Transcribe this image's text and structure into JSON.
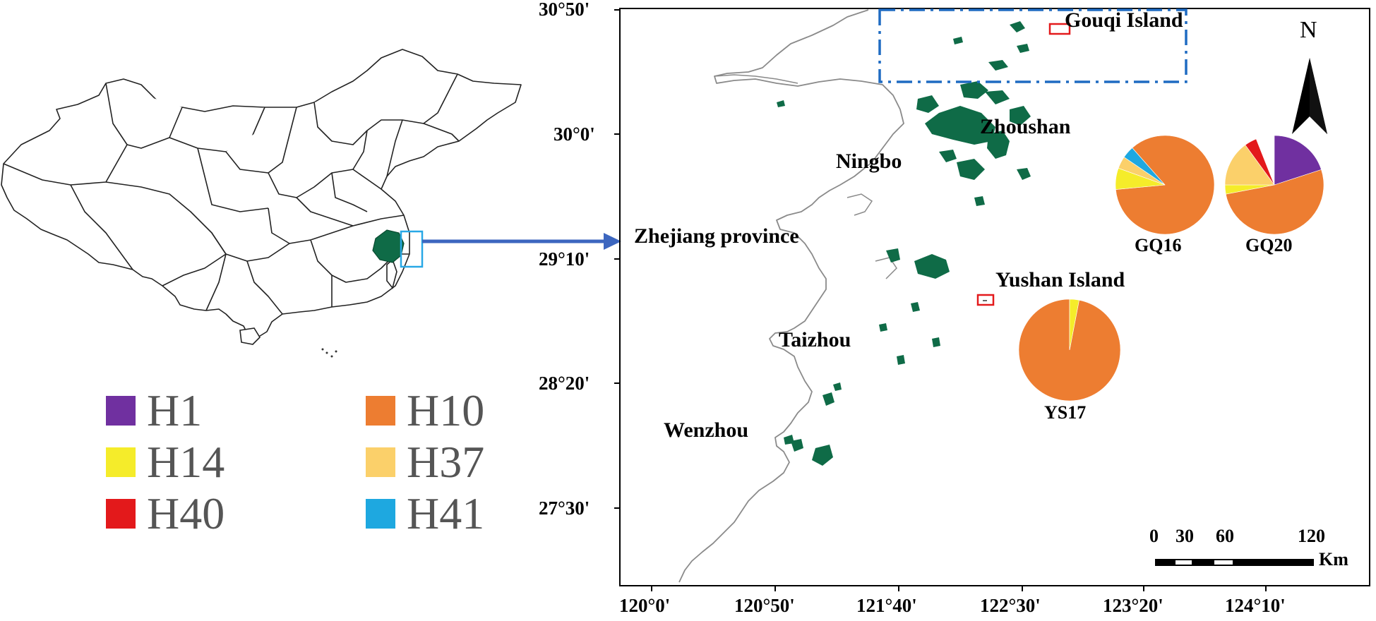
{
  "colors": {
    "province_fill": "#0f6b47",
    "island_fill": "#0f6b47",
    "study_box": "#1f6bc2",
    "inset_box": "#28a8e6",
    "arrow": "#3c66bf",
    "site_box": "#e31a1c"
  },
  "overview_map": {
    "name": "China outline map",
    "highlighted_region": "Zhejiang"
  },
  "legend": {
    "items": [
      {
        "label": "H1",
        "color": "#7030a0"
      },
      {
        "label": "H10",
        "color": "#ed7d31"
      },
      {
        "label": "H14",
        "color": "#f5ec2a"
      },
      {
        "label": "H37",
        "color": "#fbd06a"
      },
      {
        "label": "H40",
        "color": "#e3191b"
      },
      {
        "label": "H41",
        "color": "#1ea8e0"
      }
    ]
  },
  "main_map": {
    "lat_ticks": [
      "30°50'",
      "30°0'",
      "29°10'",
      "28°20'",
      "27°30'"
    ],
    "lon_ticks": [
      "120°0'",
      "120°50'",
      "121°40'",
      "122°30'",
      "123°20'",
      "124°10'"
    ],
    "places": {
      "gouqi": "Gouqi Island",
      "zhoushan": "Zhoushan",
      "ningbo": "Ningbo",
      "zhejiang": "Zhejiang province",
      "yushan": "Yushan Island",
      "taizhou": "Taizhou",
      "wenzhou": "Wenzhou"
    },
    "north_label": "N",
    "scale_bar": {
      "labels": [
        "0",
        "30",
        "60",
        "120"
      ],
      "unit": "Km"
    }
  },
  "chart_data": {
    "type": "pie",
    "pies": [
      {
        "site": "GQ16",
        "slices": [
          {
            "haplotype": "H10",
            "fraction": 0.85
          },
          {
            "haplotype": "H14",
            "fraction": 0.07
          },
          {
            "haplotype": "H37",
            "fraction": 0.04
          },
          {
            "haplotype": "H41",
            "fraction": 0.04
          }
        ]
      },
      {
        "site": "GQ20",
        "slices": [
          {
            "haplotype": "H1",
            "fraction": 0.2
          },
          {
            "haplotype": "H10",
            "fraction": 0.52
          },
          {
            "haplotype": "H14",
            "fraction": 0.03
          },
          {
            "haplotype": "H37",
            "fraction": 0.15
          },
          {
            "haplotype": "H40",
            "fraction": 0.04
          }
        ]
      },
      {
        "site": "YS17",
        "slices": [
          {
            "haplotype": "H10",
            "fraction": 0.97
          },
          {
            "haplotype": "H14",
            "fraction": 0.03
          }
        ]
      }
    ]
  }
}
